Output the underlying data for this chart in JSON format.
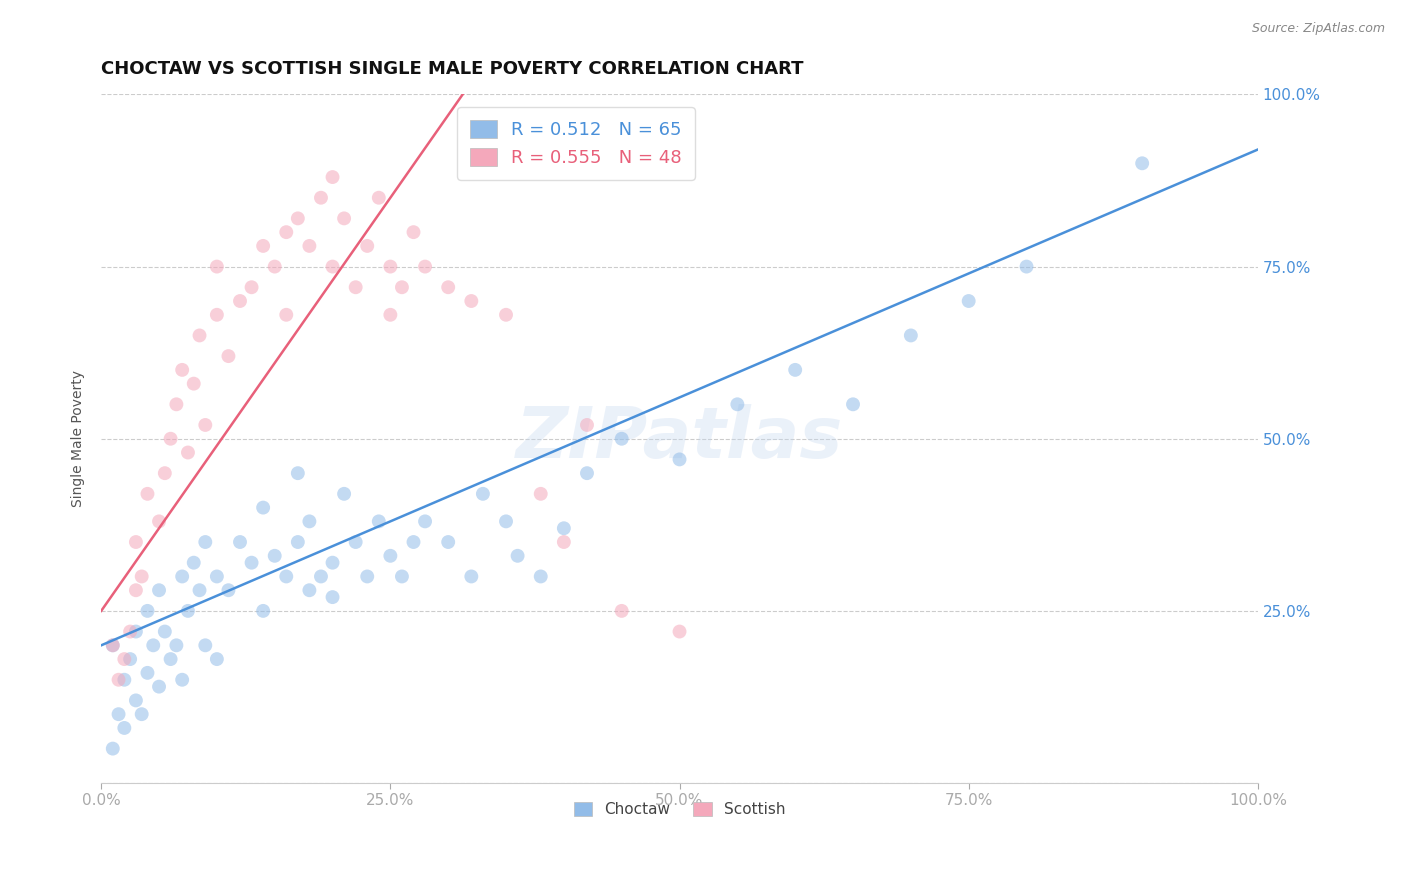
{
  "title": "CHOCTAW VS SCOTTISH SINGLE MALE POVERTY CORRELATION CHART",
  "source": "Source: ZipAtlas.com",
  "ylabel": "Single Male Poverty",
  "choctaw_R": 0.512,
  "choctaw_N": 65,
  "scottish_R": 0.555,
  "scottish_N": 48,
  "choctaw_color": "#92bce8",
  "scottish_color": "#f4a8bb",
  "choctaw_line_color": "#4a90d9",
  "scottish_line_color": "#e8607a",
  "watermark": "ZIPatlas",
  "background_color": "#ffffff",
  "choctaw_x": [
    1,
    1,
    1.5,
    2,
    2,
    2.5,
    3,
    3,
    3.5,
    4,
    4,
    4.5,
    5,
    5,
    5.5,
    6,
    6.5,
    7,
    7,
    7.5,
    8,
    8.5,
    9,
    9,
    10,
    10,
    11,
    12,
    13,
    14,
    14,
    15,
    16,
    17,
    17,
    18,
    18,
    19,
    20,
    20,
    21,
    22,
    23,
    24,
    25,
    26,
    27,
    28,
    30,
    32,
    33,
    35,
    36,
    38,
    40,
    42,
    45,
    50,
    55,
    60,
    65,
    70,
    75,
    80,
    90
  ],
  "choctaw_y": [
    5,
    20,
    10,
    8,
    15,
    18,
    12,
    22,
    10,
    16,
    25,
    20,
    14,
    28,
    22,
    18,
    20,
    15,
    30,
    25,
    32,
    28,
    20,
    35,
    18,
    30,
    28,
    35,
    32,
    25,
    40,
    33,
    30,
    35,
    45,
    28,
    38,
    30,
    32,
    27,
    42,
    35,
    30,
    38,
    33,
    30,
    35,
    38,
    35,
    30,
    42,
    38,
    33,
    30,
    37,
    45,
    50,
    47,
    55,
    60,
    55,
    65,
    70,
    75,
    90
  ],
  "scottish_x": [
    1,
    1.5,
    2,
    2.5,
    3,
    3,
    3.5,
    4,
    5,
    5.5,
    6,
    6.5,
    7,
    7.5,
    8,
    8.5,
    9,
    10,
    10,
    11,
    12,
    13,
    14,
    15,
    16,
    16,
    17,
    18,
    19,
    20,
    20,
    21,
    22,
    23,
    24,
    25,
    25,
    26,
    27,
    28,
    30,
    32,
    35,
    38,
    40,
    42,
    45,
    50
  ],
  "scottish_y": [
    20,
    15,
    18,
    22,
    28,
    35,
    30,
    42,
    38,
    45,
    50,
    55,
    60,
    48,
    58,
    65,
    52,
    68,
    75,
    62,
    70,
    72,
    78,
    75,
    68,
    80,
    82,
    78,
    85,
    88,
    75,
    82,
    72,
    78,
    85,
    75,
    68,
    72,
    80,
    75,
    72,
    70,
    68,
    42,
    35,
    52,
    25,
    22
  ],
  "xlim": [
    0,
    100
  ],
  "ylim": [
    0,
    100
  ],
  "xticks": [
    0,
    25,
    50,
    75,
    100
  ],
  "yticks": [
    0,
    25,
    50,
    75,
    100
  ],
  "xticklabels": [
    "0.0%",
    "25.0%",
    "50.0%",
    "75.0%",
    "100.0%"
  ],
  "right_yticklabels": [
    "25.0%",
    "50.0%",
    "75.0%",
    "100.0%"
  ],
  "right_yticks": [
    25,
    50,
    75,
    100
  ],
  "title_fontsize": 13,
  "marker_size": 100,
  "marker_alpha": 0.55,
  "line_width": 1.8,
  "grid_color": "#cccccc",
  "tick_color": "#4a90d9",
  "choctaw_line_intercept": 20.0,
  "choctaw_line_slope": 0.72,
  "scottish_line_intercept": 25.0,
  "scottish_line_slope": 2.4
}
